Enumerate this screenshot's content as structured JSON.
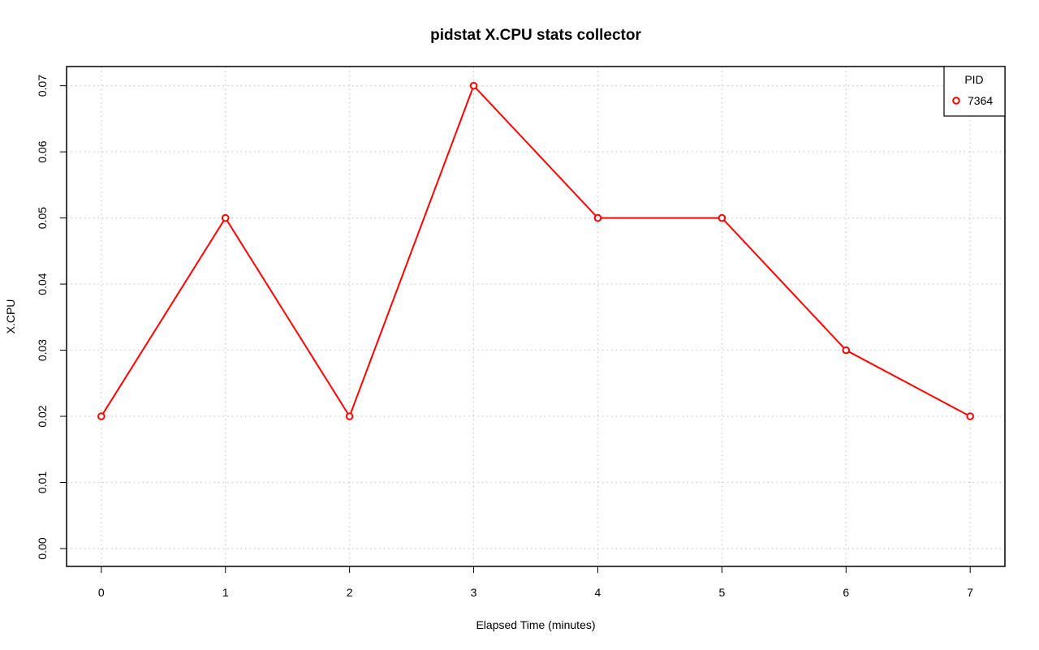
{
  "chart_data": {
    "type": "line",
    "title": "pidstat X.CPU stats collector",
    "xlabel": "Elapsed Time (minutes)",
    "ylabel": "X.CPU",
    "x": [
      0,
      1,
      2,
      3,
      4,
      5,
      6,
      7
    ],
    "xticks": [
      "0",
      "1",
      "2",
      "3",
      "4",
      "5",
      "6",
      "7"
    ],
    "yticks": [
      "0.00",
      "0.01",
      "0.02",
      "0.03",
      "0.04",
      "0.05",
      "0.06",
      "0.07"
    ],
    "xlim": [
      -0.28,
      7.28
    ],
    "ylim": [
      -0.0027,
      0.0729
    ],
    "grid": true,
    "legend": {
      "title": "PID",
      "position": "top-right",
      "entries": [
        {
          "label": "7364",
          "color": "#ff0000"
        }
      ]
    },
    "series": [
      {
        "name": "7364",
        "color": "#ff0000",
        "values": [
          0.02,
          0.05,
          0.02,
          0.07,
          0.05,
          0.05,
          0.03,
          0.02
        ]
      }
    ]
  }
}
